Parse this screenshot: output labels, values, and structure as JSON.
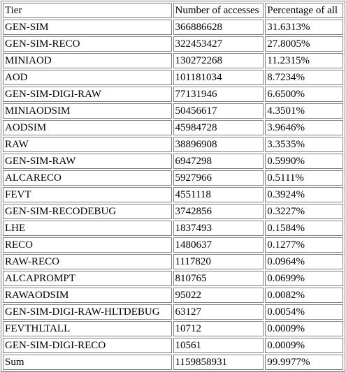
{
  "table": {
    "headers": [
      "Tier",
      "Number of accesses",
      "Percentage of all"
    ],
    "rows": [
      [
        "GEN-SIM",
        "366886628",
        "31.6313%"
      ],
      [
        "GEN-SIM-RECO",
        "322453427",
        "27.8005%"
      ],
      [
        "MINIAOD",
        "130272268",
        "11.2315%"
      ],
      [
        "AOD",
        "101181034",
        "8.7234%"
      ],
      [
        "GEN-SIM-DIGI-RAW",
        "77131946",
        "6.6500%"
      ],
      [
        "MINIAODSIM",
        "50456617",
        "4.3501%"
      ],
      [
        "AODSIM",
        "45984728",
        "3.9646%"
      ],
      [
        "RAW",
        "38896908",
        "3.3535%"
      ],
      [
        "GEN-SIM-RAW",
        "6947298",
        "0.5990%"
      ],
      [
        "ALCARECO",
        "5927966",
        "0.5111%"
      ],
      [
        "FEVT",
        "4551118",
        "0.3924%"
      ],
      [
        "GEN-SIM-RECODEBUG",
        "3742856",
        "0.3227%"
      ],
      [
        "LHE",
        "1837493",
        "0.1584%"
      ],
      [
        "RECO",
        "1480637",
        "0.1277%"
      ],
      [
        "RAW-RECO",
        "1117820",
        "0.0964%"
      ],
      [
        "ALCAPROMPT",
        "810765",
        "0.0699%"
      ],
      [
        "RAWAODSIM",
        "95022",
        "0.0082%"
      ],
      [
        "GEN-SIM-DIGI-RAW-HLTDEBUG",
        "63127",
        "0.0054%"
      ],
      [
        "FEVTHLTALL",
        "10712",
        "0.0009%"
      ],
      [
        "GEN-SIM-DIGI-RECO",
        "10561",
        "0.0009%"
      ],
      [
        "Sum",
        "1159858931",
        "99.9977%"
      ]
    ]
  }
}
